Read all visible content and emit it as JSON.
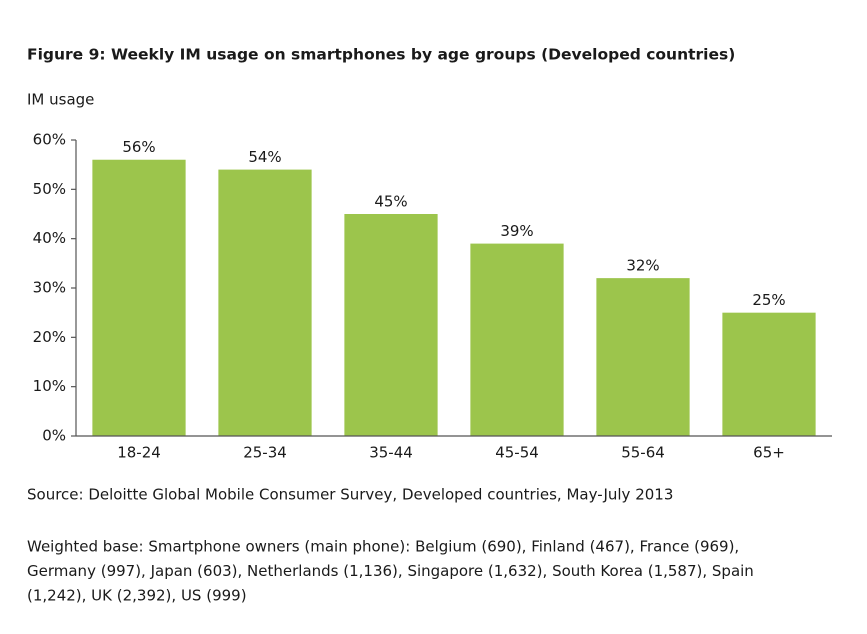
{
  "chart_data": {
    "type": "bar",
    "title": "Figure 9: Weekly IM usage on smartphones by age groups (Developed countries)",
    "y_label": "IM usage",
    "categories": [
      "18-24",
      "25-34",
      "35-44",
      "45-54",
      "55-64",
      "65+"
    ],
    "values": [
      56,
      54,
      45,
      39,
      32,
      25
    ],
    "value_labels": [
      "56%",
      "54%",
      "45%",
      "39%",
      "32%",
      "25%"
    ],
    "color": "#9cc54c",
    "ylim": [
      0,
      60
    ],
    "yticks": [
      {
        "value": 0,
        "label": "0%"
      },
      {
        "value": 10,
        "label": "10%"
      },
      {
        "value": 20,
        "label": "20%"
      },
      {
        "value": 30,
        "label": "30%"
      },
      {
        "value": 40,
        "label": "40%"
      },
      {
        "value": 50,
        "label": "50%"
      },
      {
        "value": 60,
        "label": "60%"
      }
    ],
    "grid": false,
    "source": "Source: Deloitte Global Mobile Consumer Survey, Developed countries, May-July 2013",
    "note_lines": [
      "Weighted base: Smartphone owners (main phone): Belgium (690), Finland (467), France (969),",
      "Germany (997), Japan (603), Netherlands (1,136), Singapore (1,632), South Korea (1,587), Spain",
      "(1,242), UK (2,392), US (999)"
    ]
  }
}
